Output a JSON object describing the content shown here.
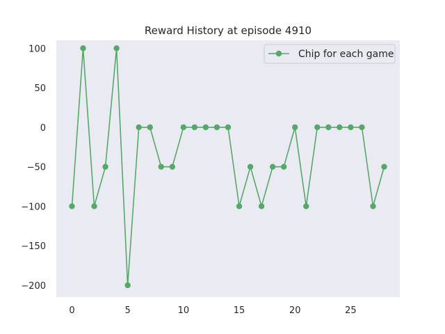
{
  "chart_data": {
    "type": "line",
    "title": "Reward History at episode 4910",
    "xlabel": "",
    "ylabel": "",
    "xlim": [
      -1.4,
      29.4
    ],
    "ylim": [
      -215,
      110
    ],
    "xticks": [
      0,
      5,
      10,
      15,
      20,
      25
    ],
    "yticks": [
      -200,
      -150,
      -100,
      -50,
      0,
      50,
      100
    ],
    "xtick_labels": [
      "0",
      "5",
      "10",
      "15",
      "20",
      "25"
    ],
    "ytick_labels": [
      "−200",
      "−150",
      "−100",
      "−50",
      "0",
      "50",
      "100"
    ],
    "grid": false,
    "legend_position": "top-right",
    "series": [
      {
        "name": "Chip for each game",
        "color": "#55a868",
        "marker": "circle",
        "x": [
          0,
          1,
          2,
          3,
          4,
          5,
          6,
          7,
          8,
          9,
          10,
          11,
          12,
          13,
          14,
          15,
          16,
          17,
          18,
          19,
          20,
          21,
          22,
          23,
          24,
          25,
          26,
          27,
          28
        ],
        "values": [
          -100,
          100,
          -100,
          -50,
          100,
          -200,
          0,
          0,
          -50,
          -50,
          0,
          0,
          0,
          0,
          0,
          -100,
          -50,
          -100,
          -50,
          -50,
          0,
          -100,
          0,
          0,
          0,
          0,
          0,
          -100,
          -50
        ]
      }
    ]
  },
  "style": {
    "plot_background": "#eaeaf2",
    "line_color": "#55a868"
  }
}
